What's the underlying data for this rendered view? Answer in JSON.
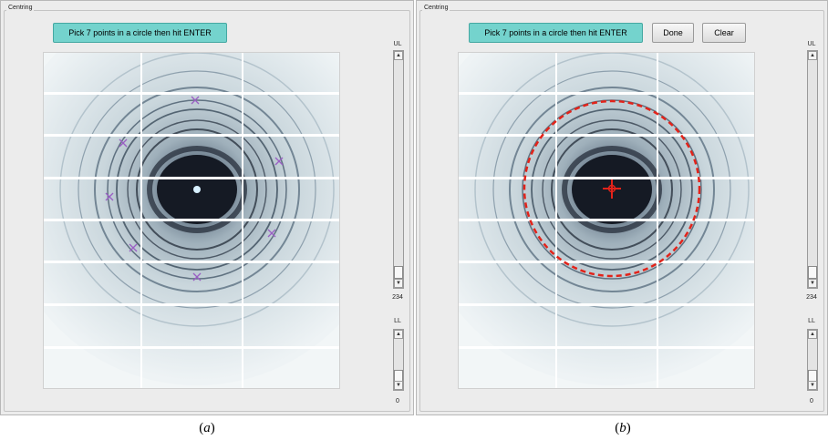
{
  "panels": [
    {
      "group_title": "Centring",
      "pick_button": "Pick 7 points in a circle then hit ENTER",
      "ul_label": "UL",
      "ul_value": "234",
      "ll_label": "LL",
      "ll_value": "0",
      "caption_letter": "a"
    },
    {
      "group_title": "Centring",
      "pick_button": "Pick 7 points in a circle then hit ENTER",
      "done_button": "Done",
      "clear_button": "Clear",
      "ul_label": "UL",
      "ul_value": "234",
      "ll_label": "LL",
      "ll_value": "0",
      "caption_letter": "b"
    }
  ],
  "colors": {
    "accent_button": "#74d3cd",
    "pick_marker": "#9a5fc4",
    "fit_circle": "#e2231a",
    "beam_center": "#e2231a"
  },
  "icons": [
    "cross-marker-icon",
    "crosshair-icon",
    "scroll-up-arrow-icon",
    "scroll-down-arrow-icon"
  ]
}
